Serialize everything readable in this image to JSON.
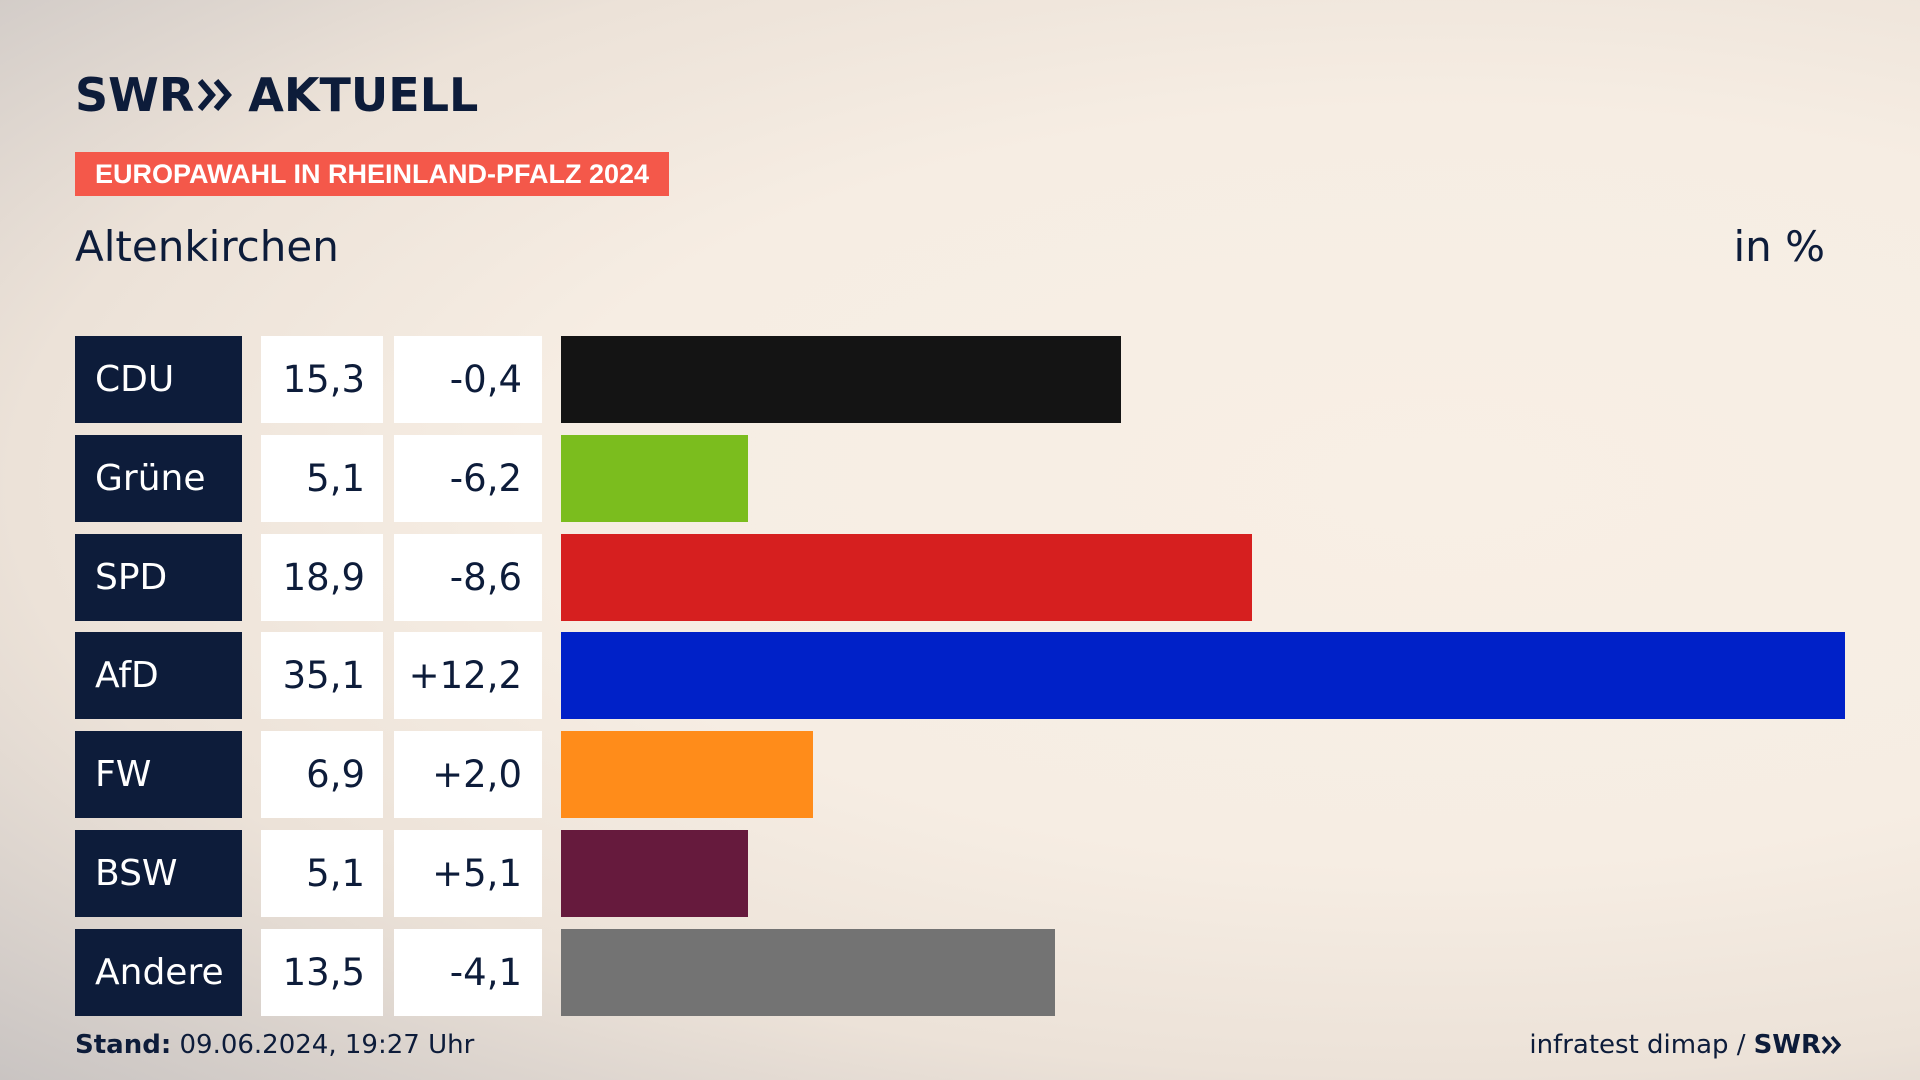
{
  "header": {
    "logo_brand": "SWR",
    "logo_product": "AKTUELL",
    "tag": "EUROPAWAHL IN RHEINLAND-PFALZ 2024",
    "region": "Altenkirchen",
    "unit": "in %"
  },
  "chart_data": {
    "type": "bar",
    "orientation": "horizontal",
    "categories": [
      "CDU",
      "Grüne",
      "SPD",
      "AfD",
      "FW",
      "BSW",
      "Andere"
    ],
    "values": [
      15.3,
      5.1,
      18.9,
      35.1,
      6.9,
      5.1,
      13.5
    ],
    "value_labels": [
      "15,3",
      "5,1",
      "18,9",
      "35,1",
      "6,9",
      "5,1",
      "13,5"
    ],
    "diff_labels": [
      "-0,4",
      "-6,2",
      "-8,6",
      "+12,2",
      "+2,0",
      "+5,1",
      "-4,1"
    ],
    "colors": [
      "#141414",
      "#7bbd1e",
      "#d61f1f",
      "#0021c8",
      "#ff8c1a",
      "#661a3d",
      "#737373"
    ],
    "xlim": [
      0,
      35.1
    ]
  },
  "footer": {
    "stand_label": "Stand:",
    "stand_value": "09.06.2024, 19:27 Uhr",
    "source": "infratest dimap /",
    "source_brand": "SWR"
  }
}
